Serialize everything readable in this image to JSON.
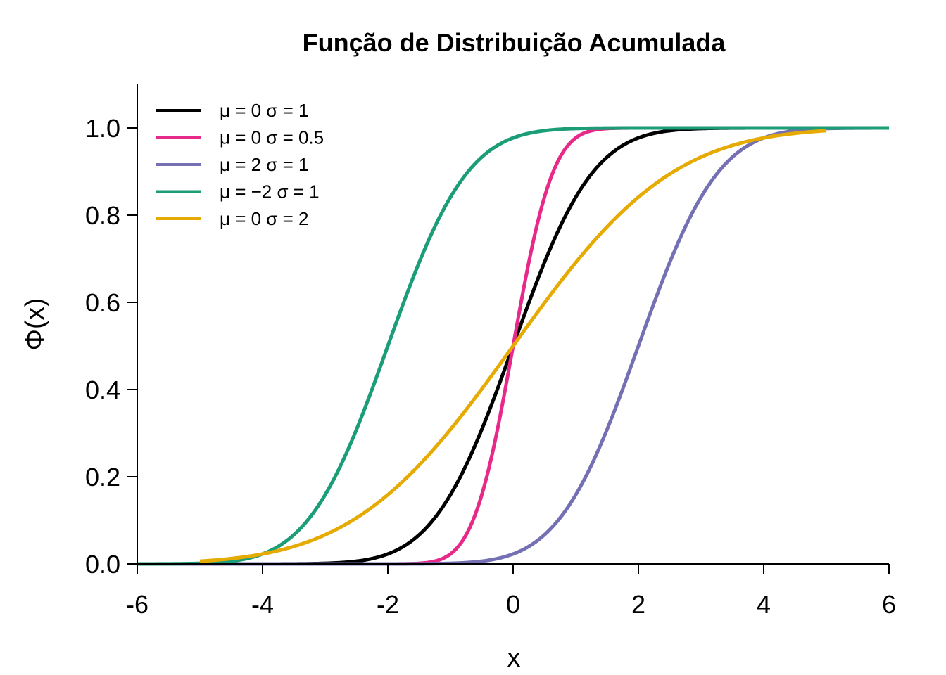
{
  "chart_data": {
    "type": "line",
    "title": "Função de Distribuição Acumulada",
    "xlabel": "x",
    "ylabel": "Φ(x)",
    "xlim": [
      -6,
      6
    ],
    "ylim": [
      0,
      1.1
    ],
    "x_ticks": [
      "-6",
      "-4",
      "-2",
      "0",
      "2",
      "4",
      "6"
    ],
    "y_ticks": [
      "0.0",
      "0.2",
      "0.4",
      "0.6",
      "0.8",
      "1.0"
    ],
    "grid": false,
    "legend_position": "top-left",
    "series": [
      {
        "name": "μ = 0  σ = 1",
        "mu": 0,
        "sigma": 1,
        "x_range": [
          -6,
          6
        ],
        "color": "#000000"
      },
      {
        "name": "μ = 0  σ = 0.5",
        "mu": 0,
        "sigma": 0.5,
        "x_range": [
          -6,
          6
        ],
        "color": "#E7298A"
      },
      {
        "name": "μ = 2  σ = 1",
        "mu": 2,
        "sigma": 1,
        "x_range": [
          -6,
          6
        ],
        "color": "#7570B3"
      },
      {
        "name": "μ = −2  σ = 1",
        "mu": -2,
        "sigma": 1,
        "x_range": [
          -6,
          6
        ],
        "color": "#1B9E77"
      },
      {
        "name": "μ = 0  σ = 2",
        "mu": 0,
        "sigma": 2,
        "x_range": [
          -5,
          5
        ],
        "color": "#E6AB02"
      }
    ]
  }
}
